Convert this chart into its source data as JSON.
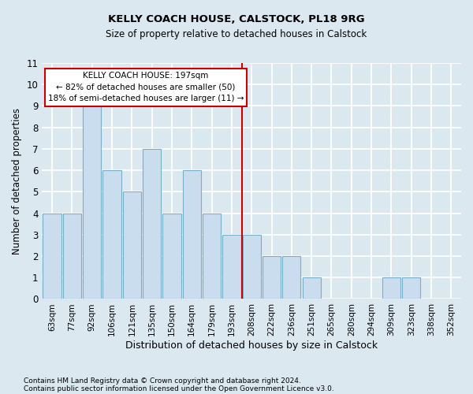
{
  "title1": "KELLY COACH HOUSE, CALSTOCK, PL18 9RG",
  "title2": "Size of property relative to detached houses in Calstock",
  "xlabel": "Distribution of detached houses by size in Calstock",
  "ylabel": "Number of detached properties",
  "categories": [
    "63sqm",
    "77sqm",
    "92sqm",
    "106sqm",
    "121sqm",
    "135sqm",
    "150sqm",
    "164sqm",
    "179sqm",
    "193sqm",
    "208sqm",
    "222sqm",
    "236sqm",
    "251sqm",
    "265sqm",
    "280sqm",
    "294sqm",
    "309sqm",
    "323sqm",
    "338sqm",
    "352sqm"
  ],
  "values": [
    4,
    4,
    9,
    6,
    5,
    7,
    4,
    6,
    4,
    3,
    3,
    2,
    2,
    1,
    0,
    0,
    0,
    1,
    1,
    0,
    0
  ],
  "bar_color": "#c9ddef",
  "bar_edge_color": "#7aafc8",
  "subject_label": "KELLY COACH HOUSE: 197sqm",
  "annotation_line1": "← 82% of detached houses are smaller (50)",
  "annotation_line2": "18% of semi-detached houses are larger (11) →",
  "annotation_box_color": "#ffffff",
  "annotation_box_edge": "#cc0000",
  "vline_color": "#cc0000",
  "vline_index": 9.5,
  "ylim": [
    0,
    11
  ],
  "yticks": [
    0,
    1,
    2,
    3,
    4,
    5,
    6,
    7,
    8,
    9,
    10,
    11
  ],
  "footer1": "Contains HM Land Registry data © Crown copyright and database right 2024.",
  "footer2": "Contains public sector information licensed under the Open Government Licence v3.0.",
  "bg_color": "#dce8f0",
  "plot_bg_color": "#dce8f0",
  "grid_color": "#ffffff"
}
